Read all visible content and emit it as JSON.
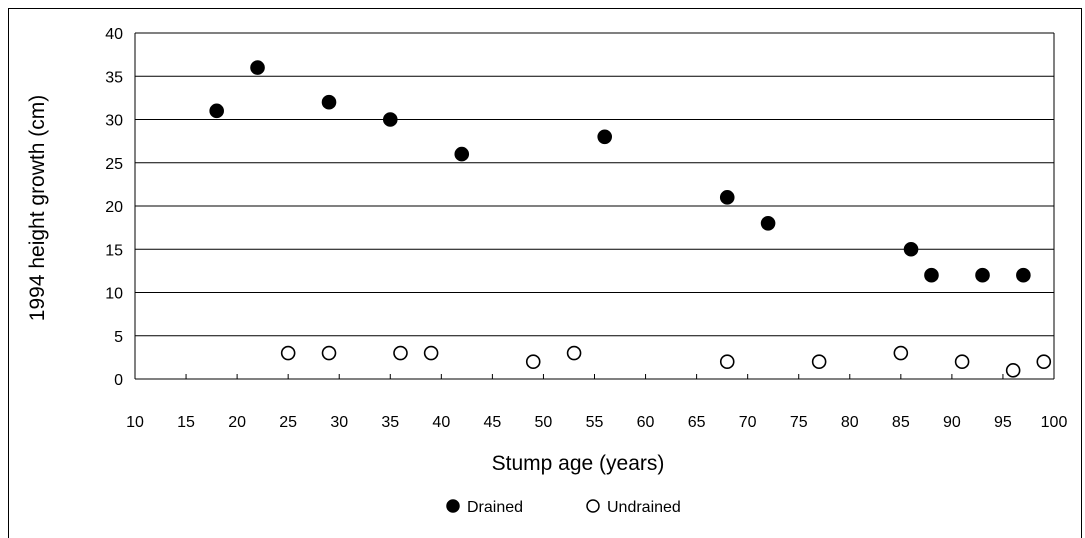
{
  "chart_data": {
    "type": "scatter",
    "xlabel": "Stump age (years)",
    "ylabel": "1994 height growth (cm)",
    "xlim": [
      10,
      100
    ],
    "ylim": [
      0,
      40
    ],
    "x_ticks": [
      "10",
      "15",
      "20",
      "25",
      "30",
      "35",
      "40",
      "45",
      "50",
      "55",
      "60",
      "65",
      "70",
      "75",
      "80",
      "85",
      "90",
      "95",
      "100"
    ],
    "y_ticks": [
      "0",
      "5",
      "10",
      "15",
      "20",
      "25",
      "30",
      "35",
      "40"
    ],
    "grid": "horizontal",
    "legend_position": "bottom",
    "series": [
      {
        "name": "Drained",
        "marker": "filled-circle",
        "color": "#000000",
        "x": [
          18,
          22,
          29,
          35,
          42,
          56,
          68,
          72,
          86,
          88,
          93,
          97
        ],
        "y": [
          31,
          36,
          32,
          30,
          26,
          28,
          21,
          18,
          15,
          12,
          12,
          12
        ]
      },
      {
        "name": "Undrained",
        "marker": "open-circle",
        "color": "#000000",
        "x": [
          25,
          29,
          36,
          39,
          49,
          53,
          68,
          77,
          85,
          91,
          96,
          99
        ],
        "y": [
          3,
          3,
          3,
          3,
          2,
          3,
          2,
          2,
          3,
          2,
          1,
          2
        ]
      }
    ]
  }
}
